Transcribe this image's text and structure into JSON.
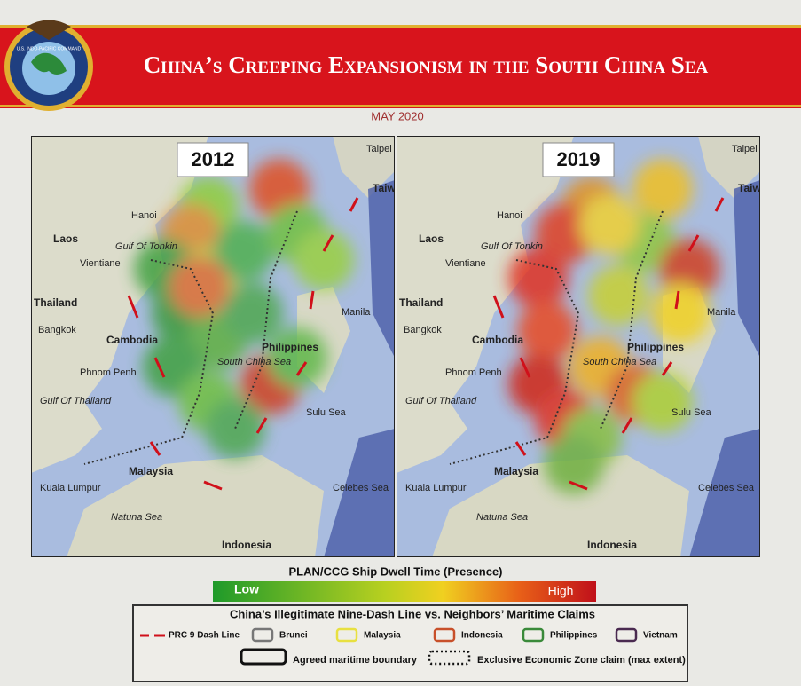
{
  "header": {
    "logo_text": "U.S. INDO-PACIFIC COMMAND",
    "title": "China’s Creeping Expansionism in the South China Sea",
    "date": "MAY 2020"
  },
  "maps": [
    {
      "year": "2012"
    },
    {
      "year": "2019"
    }
  ],
  "place_labels": [
    "Taipei",
    "Taiwan",
    "Hanoi",
    "Gulf Of Tonkin",
    "Laos",
    "Vientiane",
    "Thailand",
    "Bangkok",
    "Cambodia",
    "Phnom Penh",
    "Gulf Of Thailand",
    "Philippines",
    "Manila",
    "South China Sea",
    "Sulu Sea",
    "Malaysia",
    "Kuala Lumpur",
    "Natuna Sea",
    "Celebes Sea",
    "Indonesia"
  ],
  "dwell_scale": {
    "title": "PLAN/CCG Ship Dwell Time (Presence)",
    "low": "Low",
    "high": "High"
  },
  "legend": {
    "title": "China’s Illegitimate Nine-Dash Line vs. Neighbors’ Maritime Claims",
    "items": [
      "PRC 9 Dash Line",
      "Brunei",
      "Malaysia",
      "Indonesia",
      "Philippines",
      "Vietnam"
    ],
    "agreed": "Agreed maritime boundary",
    "eez": "Exclusive Economic Zone claim (max extent)"
  }
}
